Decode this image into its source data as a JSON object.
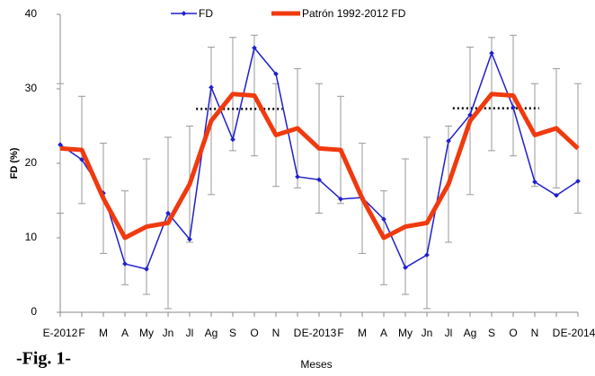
{
  "chart_data": {
    "type": "line",
    "caption": "-Fig. 1-",
    "x_label": "Meses",
    "y_label": "FD (%)",
    "categories": [
      "E-2012",
      "F",
      "M",
      "A",
      "My",
      "Jn",
      "Jl",
      "Ag",
      "S",
      "O",
      "N",
      "D",
      "E-2013",
      "F",
      "M",
      "A",
      "My",
      "Jn",
      "Jl",
      "Ag",
      "S",
      "O",
      "N",
      "D",
      "E-2014"
    ],
    "series": [
      {
        "name": "FD",
        "color": "#1f1fcc",
        "values": [
          22.5,
          20.5,
          16,
          6.5,
          5.8,
          13.3,
          9.8,
          30.2,
          23.2,
          35.5,
          32,
          18.2,
          17.8,
          15.2,
          15.4,
          12.5,
          6,
          7.7,
          23,
          26.5,
          34.8,
          27.5,
          17.5,
          15.7,
          17.6
        ]
      },
      {
        "name": "Patrón 1992-2012 FD",
        "color": "#f03a0e",
        "values": [
          22,
          21.8,
          15.3,
          10,
          11.5,
          12,
          17.2,
          25.7,
          29.3,
          29.1,
          23.8,
          24.7,
          22,
          21.8,
          15.3,
          10,
          11.5,
          12,
          17.2,
          25.7,
          29.3,
          29.1,
          23.8,
          24.7,
          22
        ],
        "errors": [
          8.7,
          7.2,
          7.4,
          6.3,
          9.1,
          11.5,
          7.8,
          9.9,
          7.6,
          8.1,
          6.9,
          8,
          8.7,
          7.2,
          7.4,
          6.3,
          9.1,
          11.5,
          7.8,
          9.9,
          7.6,
          8.1,
          6.9,
          8,
          8.7
        ]
      }
    ],
    "reference_lines": [
      {
        "x": [
          6.3,
          10.3
        ],
        "value": 27.3
      },
      {
        "x": [
          18.2,
          22.2
        ],
        "value": 27.4
      }
    ],
    "ylim": [
      0,
      40
    ],
    "yticks": [
      0,
      10,
      20,
      30,
      40
    ]
  }
}
